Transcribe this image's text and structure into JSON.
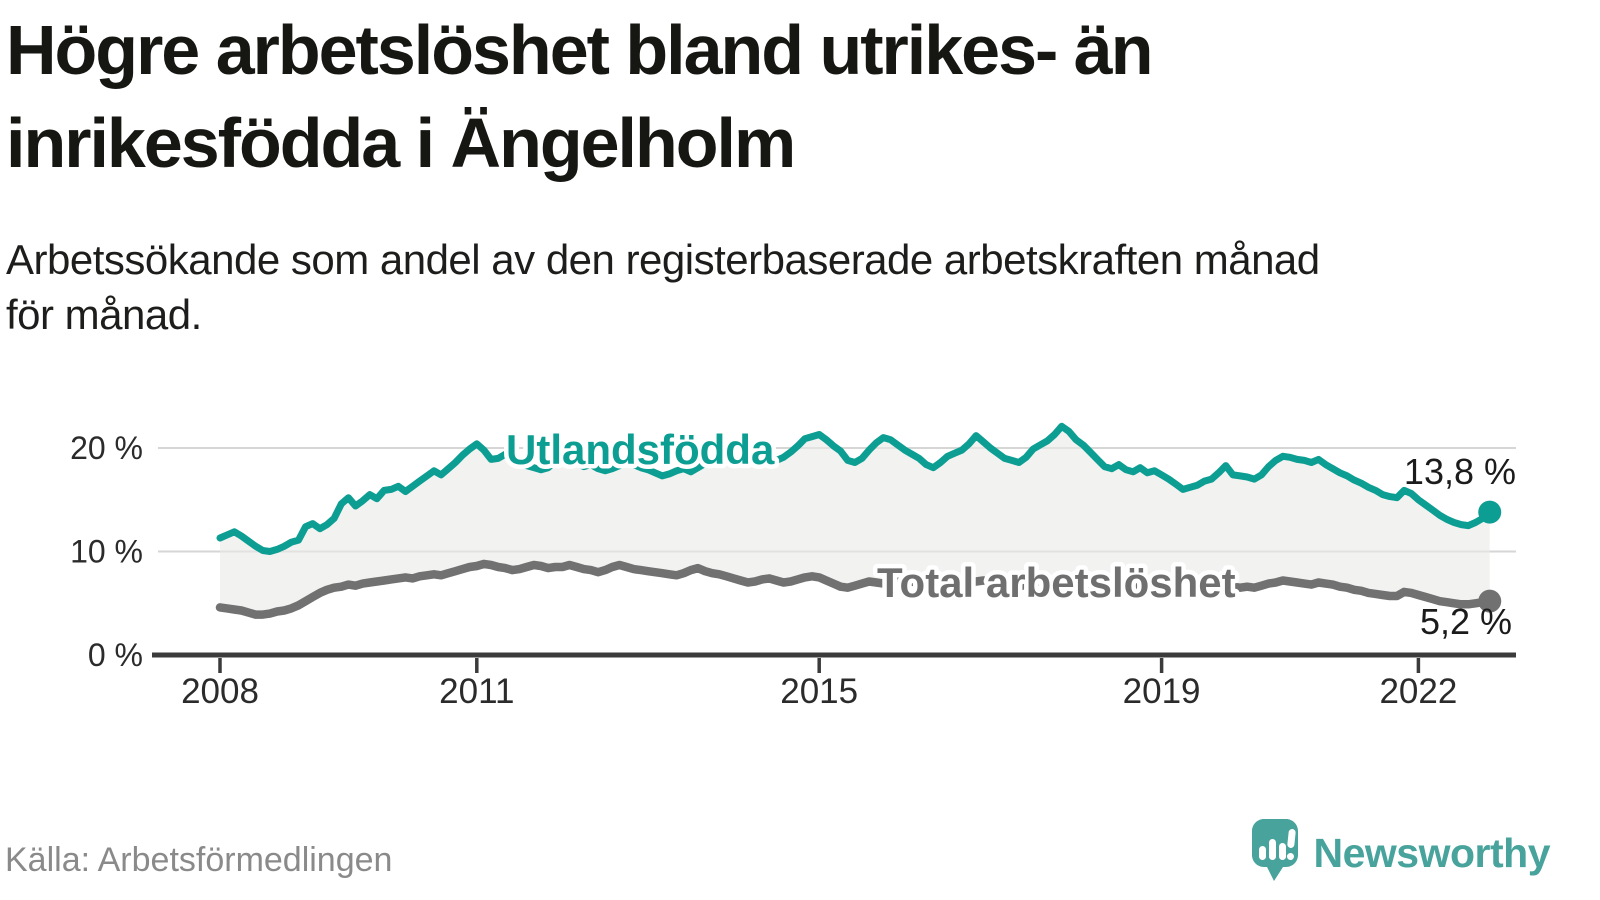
{
  "header": {
    "title_line1": "Högre arbetslöshet bland utrikes- än",
    "title_line2": "inrikesfödda i Ängelholm",
    "subtitle_line1": "Arbetssökande som andel av den registerbaserade arbetskraften månad",
    "subtitle_line2": "för månad."
  },
  "footer": {
    "source": "Källa: Arbetsförmedlingen",
    "brand": "Newsworthy"
  },
  "colors": {
    "series_foreign_born": "#0d9e93",
    "series_total": "#717171",
    "band_fill": "#efefee",
    "gridline": "#d6d6d4",
    "axis": "#3b3b3b",
    "brand_teal": "#47a39c"
  },
  "chart_data": {
    "type": "line",
    "title": "Högre arbetslöshet bland utrikes- än inrikesfödda i Ängelholm",
    "subtitle": "Arbetssökande som andel av den registerbaserade arbetskraften månad för månad.",
    "unit": "%",
    "frequency": "monthly",
    "x_start": "2008-01",
    "x_end": "2022-11",
    "grid": "horizontal",
    "legend_position": "inline-labels",
    "y_axis": {
      "range": [
        0,
        22.5
      ],
      "ticks": [
        {
          "value": 20,
          "label": "20 %"
        },
        {
          "value": 10,
          "label": "10 %"
        },
        {
          "value": 0,
          "label": "0 %"
        }
      ],
      "grid_values": [
        20,
        10
      ]
    },
    "x_axis": {
      "tick_years": [
        2008,
        2011,
        2015,
        2019,
        2022
      ]
    },
    "band_fill_between_series": true,
    "series": [
      {
        "name": "Utlandsfödda",
        "color": "#0d9e93",
        "end_label": "13,8 %",
        "last_value": 13.8,
        "values": [
          11.3,
          11.6,
          11.9,
          11.5,
          11.0,
          10.5,
          10.1,
          10.0,
          10.2,
          10.5,
          10.9,
          11.1,
          12.4,
          12.7,
          12.2,
          12.6,
          13.2,
          14.6,
          15.2,
          14.4,
          14.9,
          15.5,
          15.1,
          15.9,
          16.0,
          16.3,
          15.8,
          16.3,
          16.8,
          17.3,
          17.8,
          17.4,
          18.0,
          18.6,
          19.3,
          19.9,
          20.4,
          19.8,
          18.9,
          19.0,
          19.4,
          18.9,
          18.6,
          18.3,
          18.1,
          17.9,
          18.1,
          18.7,
          19.0,
          18.8,
          18.5,
          18.2,
          18.4,
          18.0,
          17.8,
          18.0,
          18.3,
          18.6,
          18.4,
          18.1,
          17.9,
          17.6,
          17.3,
          17.5,
          17.8,
          18.0,
          17.7,
          18.1,
          18.5,
          18.8,
          19.0,
          19.3,
          19.1,
          18.8,
          18.6,
          18.9,
          19.2,
          19.0,
          18.8,
          19.1,
          19.6,
          20.2,
          20.9,
          21.1,
          21.3,
          20.8,
          20.2,
          19.7,
          18.8,
          18.6,
          19.0,
          19.8,
          20.5,
          21.0,
          20.8,
          20.3,
          19.8,
          19.4,
          19.0,
          18.4,
          18.1,
          18.6,
          19.2,
          19.5,
          19.8,
          20.4,
          21.2,
          20.6,
          20.0,
          19.5,
          19.0,
          18.8,
          18.6,
          19.1,
          19.9,
          20.3,
          20.7,
          21.3,
          22.1,
          21.6,
          20.8,
          20.3,
          19.6,
          18.9,
          18.2,
          18.0,
          18.4,
          17.9,
          17.7,
          18.1,
          17.6,
          17.8,
          17.4,
          17.0,
          16.5,
          16.0,
          16.2,
          16.4,
          16.8,
          17.0,
          17.6,
          18.3,
          17.4,
          17.3,
          17.2,
          17.0,
          17.4,
          18.2,
          18.8,
          19.2,
          19.1,
          18.9,
          18.8,
          18.6,
          18.9,
          18.4,
          18.0,
          17.6,
          17.3,
          16.9,
          16.6,
          16.2,
          15.9,
          15.5,
          15.3,
          15.2,
          15.9,
          15.6,
          15.0,
          14.5,
          14.0,
          13.5,
          13.1,
          12.8,
          12.6,
          12.5,
          12.8,
          13.2,
          13.8
        ]
      },
      {
        "name": "Total arbetslöshet",
        "color": "#717171",
        "end_label": "5,2 %",
        "last_value": 5.2,
        "values": [
          4.6,
          4.5,
          4.4,
          4.3,
          4.1,
          3.9,
          3.9,
          4.0,
          4.2,
          4.3,
          4.5,
          4.8,
          5.2,
          5.6,
          6.0,
          6.3,
          6.5,
          6.6,
          6.8,
          6.7,
          6.9,
          7.0,
          7.1,
          7.2,
          7.3,
          7.4,
          7.5,
          7.4,
          7.6,
          7.7,
          7.8,
          7.7,
          7.9,
          8.1,
          8.3,
          8.5,
          8.6,
          8.8,
          8.7,
          8.5,
          8.4,
          8.2,
          8.3,
          8.5,
          8.7,
          8.6,
          8.4,
          8.5,
          8.5,
          8.7,
          8.5,
          8.3,
          8.2,
          8.0,
          8.2,
          8.5,
          8.7,
          8.5,
          8.3,
          8.2,
          8.1,
          8.0,
          7.9,
          7.8,
          7.7,
          7.9,
          8.2,
          8.4,
          8.1,
          7.9,
          7.8,
          7.6,
          7.4,
          7.2,
          7.0,
          7.1,
          7.3,
          7.4,
          7.2,
          7.0,
          7.1,
          7.3,
          7.5,
          7.6,
          7.5,
          7.2,
          6.9,
          6.6,
          6.5,
          6.7,
          6.9,
          7.1,
          7.0,
          6.9,
          7.0,
          7.2,
          7.3,
          7.1,
          6.9,
          6.7,
          6.6,
          6.8,
          7.0,
          7.2,
          7.1,
          7.0,
          7.1,
          7.2,
          7.1,
          7.0,
          6.8,
          6.7,
          6.6,
          6.8,
          7.0,
          7.1,
          7.0,
          6.9,
          7.0,
          7.1,
          7.0,
          6.9,
          6.7,
          6.5,
          6.4,
          6.5,
          6.7,
          6.6,
          6.5,
          6.6,
          6.5,
          6.6,
          6.5,
          6.4,
          6.2,
          6.1,
          6.2,
          6.4,
          6.6,
          6.7,
          6.6,
          6.8,
          6.6,
          6.5,
          6.6,
          6.5,
          6.7,
          6.9,
          7.0,
          7.2,
          7.1,
          7.0,
          6.9,
          6.8,
          7.0,
          6.9,
          6.8,
          6.6,
          6.5,
          6.3,
          6.2,
          6.0,
          5.9,
          5.8,
          5.7,
          5.7,
          6.1,
          6.0,
          5.8,
          5.6,
          5.4,
          5.2,
          5.1,
          5.0,
          4.9,
          4.9,
          5.0,
          5.1,
          5.2
        ]
      }
    ]
  }
}
